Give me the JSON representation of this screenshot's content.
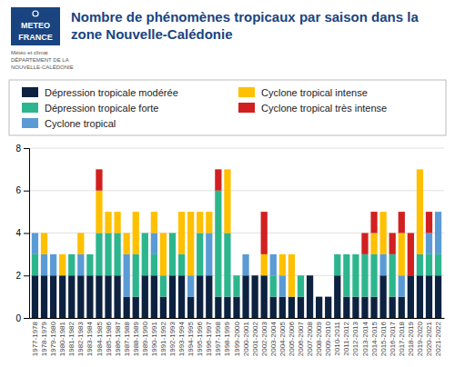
{
  "chart_data": {
    "type": "bar",
    "stacked": true,
    "title": "Nombre de phénomènes tropicaux par saison dans la zone Nouvelle-Calédonie",
    "annotations": [
      "Météo et climat",
      "DÉPARTEMENT DE LA",
      "NOUVELLE-CALÉDONIE",
      "METEO",
      "FRANCE"
    ],
    "categories": [
      "1977-1978",
      "1978-1979",
      "1979-1980",
      "1980-1981",
      "1981-1982",
      "1982-1983",
      "1983-1984",
      "1984-1985",
      "1985-1986",
      "1986-1987",
      "1987-1988",
      "1988-1989",
      "1989-1990",
      "1990-1991",
      "1991-1992",
      "1992-1993",
      "1993-1994",
      "1994-1995",
      "1995-1996",
      "1996-1997",
      "1997-1998",
      "1998-1999",
      "1999-2000",
      "2000-2001",
      "2001-2002",
      "2002-2003",
      "2003-2004",
      "2004-2005",
      "2005-2006",
      "2006-2007",
      "2007-2008",
      "2008-2009",
      "2009-2010",
      "2010-2011",
      "2011-2012",
      "2012-2013",
      "2013-2014",
      "2014-2015",
      "2015-2016",
      "2016-2017",
      "2017-2018",
      "2018-2019",
      "2019-2020",
      "2020-2021",
      "2021-2022"
    ],
    "series": [
      {
        "name": "Dépression tropicale modérée",
        "color": "#0d2240",
        "values": [
          2,
          2,
          2,
          2,
          2,
          2,
          2,
          2,
          2,
          2,
          1,
          1,
          2,
          2,
          1,
          2,
          2,
          1,
          2,
          2,
          1,
          1,
          1,
          2,
          2,
          2,
          1,
          1,
          1,
          1,
          2,
          1,
          1,
          2,
          1,
          1,
          1,
          1,
          2,
          1,
          1,
          2,
          2,
          2,
          2
        ]
      },
      {
        "name": "Dépression tropicale forte",
        "color": "#2db68d",
        "values": [
          1,
          0,
          0,
          0,
          1,
          0,
          1,
          2,
          2,
          2,
          0,
          2,
          2,
          1,
          1,
          2,
          1,
          0,
          2,
          0,
          5,
          3,
          1,
          0,
          0,
          0,
          1,
          0,
          0,
          1,
          0,
          0,
          0,
          1,
          2,
          2,
          2,
          2,
          0,
          2,
          0,
          0,
          1,
          1,
          1
        ]
      },
      {
        "name": "Cyclone tropical",
        "color": "#5b9bd5",
        "values": [
          1,
          1,
          1,
          0,
          0,
          1,
          0,
          0,
          0,
          0,
          2,
          0,
          0,
          1,
          0,
          0,
          0,
          1,
          0,
          2,
          0,
          0,
          0,
          1,
          0,
          0,
          1,
          1,
          0,
          0,
          0,
          0,
          0,
          0,
          0,
          0,
          0,
          0,
          1,
          0,
          1,
          0,
          0,
          1,
          2
        ]
      },
      {
        "name": "Cyclone tropical intense",
        "color": "#ffc000",
        "values": [
          0,
          1,
          0,
          1,
          0,
          1,
          0,
          2,
          1,
          1,
          1,
          2,
          0,
          1,
          2,
          0,
          2,
          3,
          1,
          1,
          0,
          3,
          0,
          0,
          0,
          1,
          0,
          1,
          2,
          0,
          0,
          0,
          0,
          0,
          0,
          0,
          0,
          1,
          2,
          0,
          2,
          0,
          4,
          0,
          0
        ]
      },
      {
        "name": "Cyclone tropical très intense",
        "color": "#d12020",
        "values": [
          0,
          0,
          0,
          0,
          0,
          0,
          0,
          1,
          0,
          0,
          0,
          0,
          0,
          0,
          0,
          0,
          0,
          0,
          0,
          0,
          1,
          0,
          0,
          0,
          0,
          2,
          0,
          0,
          0,
          0,
          0,
          0,
          0,
          0,
          0,
          0,
          1,
          1,
          0,
          1,
          1,
          2,
          0,
          1,
          0
        ]
      }
    ],
    "ylim": [
      0,
      8
    ],
    "yticks": [
      0,
      2,
      4,
      6,
      8
    ],
    "grid": true,
    "legend": "top"
  }
}
